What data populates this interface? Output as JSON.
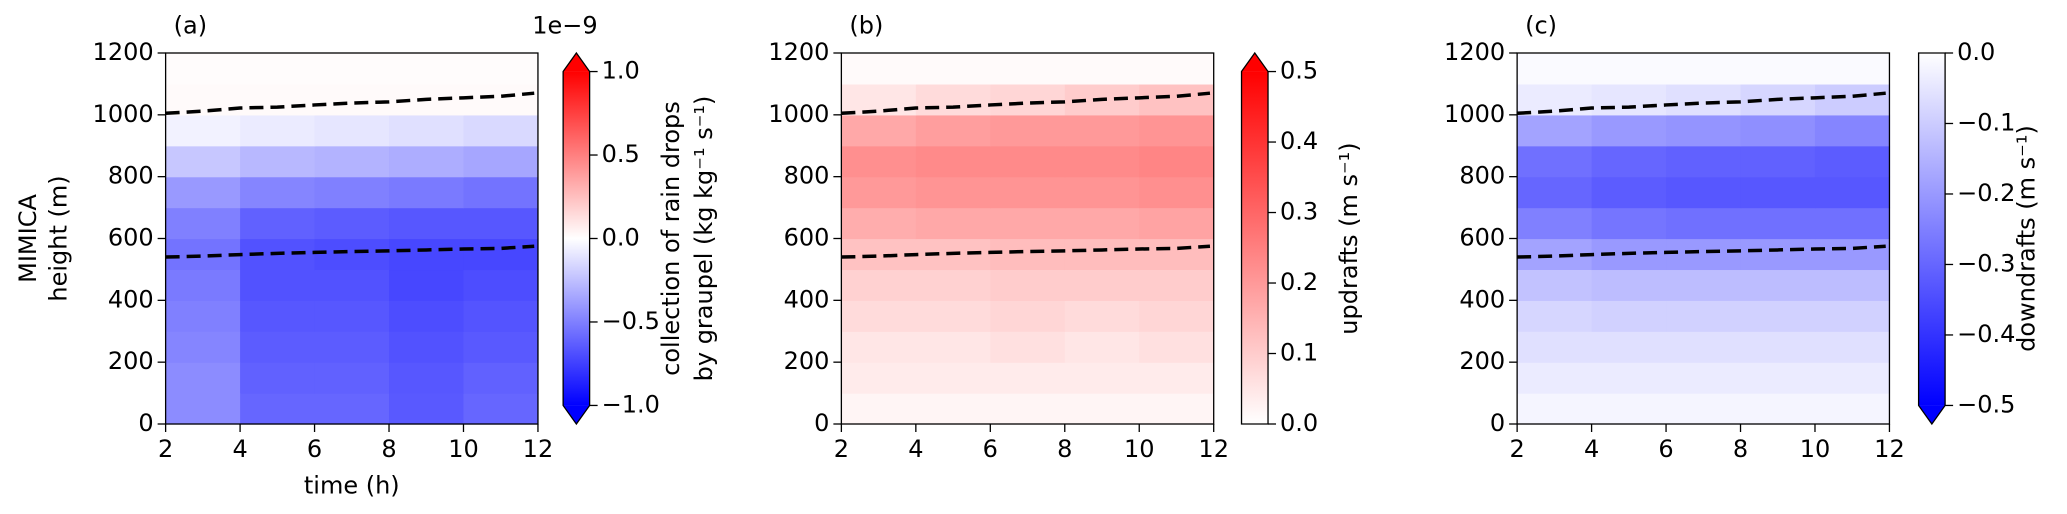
{
  "chart_data": [
    {
      "type": "heatmap",
      "panel_label": "(a)",
      "xlim": [
        2,
        12
      ],
      "xticks": [
        2,
        4,
        6,
        8,
        10,
        12
      ],
      "xlabel": "time (h)",
      "ylim": [
        0,
        1200
      ],
      "yticks": [
        0,
        200,
        400,
        600,
        800,
        1000,
        1200
      ],
      "ylabel": [
        "MIMICA",
        "height (m)"
      ],
      "colors": [
        "#0000ff",
        "#ffffff",
        "#ff0000"
      ],
      "clim": [
        -1,
        1
      ],
      "extend": "both",
      "colorbar_ticks": [
        {
          "value": -1,
          "label": "−1.0"
        },
        {
          "value": -0.5,
          "label": "−0.5"
        },
        {
          "value": 0,
          "label": "0.0"
        },
        {
          "value": 0.5,
          "label": "0.5"
        },
        {
          "value": 1,
          "label": "1.0"
        }
      ],
      "colorbar_offset": "1e−9",
      "colorbar_label": [
        "collection of rain drops",
        "by graupel (kg kg⁻¹ s⁻¹)"
      ],
      "x_edges": [
        2,
        4,
        6,
        8,
        10,
        12
      ],
      "y_edges": [
        0,
        100,
        200,
        300,
        400,
        500,
        600,
        700,
        800,
        900,
        1000,
        1100,
        1200
      ],
      "values": [
        [
          -0.45,
          -0.6,
          -0.6,
          -0.65,
          -0.6
        ],
        [
          -0.45,
          -0.62,
          -0.62,
          -0.66,
          -0.62
        ],
        [
          -0.48,
          -0.64,
          -0.64,
          -0.68,
          -0.65
        ],
        [
          -0.5,
          -0.66,
          -0.66,
          -0.7,
          -0.67
        ],
        [
          -0.52,
          -0.68,
          -0.68,
          -0.72,
          -0.7
        ],
        [
          -0.55,
          -0.68,
          -0.7,
          -0.72,
          -0.72
        ],
        [
          -0.5,
          -0.62,
          -0.64,
          -0.66,
          -0.66
        ],
        [
          -0.4,
          -0.48,
          -0.5,
          -0.52,
          -0.55
        ],
        [
          -0.22,
          -0.28,
          -0.3,
          -0.32,
          -0.35
        ],
        [
          -0.05,
          -0.08,
          -0.1,
          -0.12,
          -0.15
        ],
        [
          0.02,
          0.02,
          0.02,
          0.02,
          0.02
        ],
        [
          0.01,
          0.01,
          0.01,
          0.01,
          0.01
        ]
      ],
      "lines": [
        {
          "color": "#000000",
          "dashed": true,
          "x": [
            2,
            3,
            4,
            5,
            6,
            7,
            8,
            9,
            10,
            11,
            11.9
          ],
          "values": [
            1005,
            1012,
            1022,
            1025,
            1032,
            1038,
            1042,
            1050,
            1055,
            1060,
            1070
          ]
        },
        {
          "color": "#000000",
          "dashed": true,
          "x": [
            2,
            3,
            4,
            5,
            6,
            7,
            8,
            9,
            10,
            11,
            11.9
          ],
          "values": [
            540,
            543,
            548,
            552,
            555,
            558,
            560,
            563,
            566,
            568,
            575
          ]
        }
      ]
    },
    {
      "type": "heatmap",
      "panel_label": "(b)",
      "xlim": [
        2,
        12
      ],
      "xticks": [
        2,
        4,
        6,
        8,
        10,
        12
      ],
      "ylim": [
        0,
        1200
      ],
      "yticks": [
        0,
        200,
        400,
        600,
        800,
        1000,
        1200
      ],
      "colors": [
        "#ffffff",
        "#ff0000"
      ],
      "clim": [
        0,
        0.5
      ],
      "extend": "max",
      "colorbar_ticks": [
        {
          "value": 0,
          "label": "0.0"
        },
        {
          "value": 0.1,
          "label": "0.1"
        },
        {
          "value": 0.2,
          "label": "0.2"
        },
        {
          "value": 0.3,
          "label": "0.3"
        },
        {
          "value": 0.4,
          "label": "0.4"
        },
        {
          "value": 0.5,
          "label": "0.5"
        }
      ],
      "colorbar_label": [
        "updrafts (m s⁻¹)"
      ],
      "x_edges": [
        2,
        4,
        6,
        8,
        10,
        12
      ],
      "y_edges": [
        0,
        100,
        200,
        300,
        400,
        500,
        600,
        700,
        800,
        900,
        1000,
        1100,
        1200
      ],
      "values": [
        [
          0.02,
          0.02,
          0.02,
          0.02,
          0.02
        ],
        [
          0.04,
          0.04,
          0.04,
          0.04,
          0.04
        ],
        [
          0.05,
          0.05,
          0.06,
          0.05,
          0.06
        ],
        [
          0.07,
          0.07,
          0.08,
          0.07,
          0.08
        ],
        [
          0.09,
          0.09,
          0.1,
          0.1,
          0.1
        ],
        [
          0.12,
          0.12,
          0.13,
          0.13,
          0.13
        ],
        [
          0.16,
          0.17,
          0.17,
          0.17,
          0.18
        ],
        [
          0.2,
          0.21,
          0.21,
          0.21,
          0.22
        ],
        [
          0.22,
          0.23,
          0.23,
          0.23,
          0.24
        ],
        [
          0.17,
          0.19,
          0.2,
          0.2,
          0.21
        ],
        [
          0.05,
          0.07,
          0.08,
          0.1,
          0.12
        ],
        [
          0.01,
          0.01,
          0.01,
          0.01,
          0.01
        ]
      ],
      "lines": [
        {
          "color": "#000000",
          "dashed": true,
          "x": [
            2,
            3,
            4,
            5,
            6,
            7,
            8,
            9,
            10,
            11,
            11.9
          ],
          "values": [
            1005,
            1012,
            1022,
            1025,
            1032,
            1038,
            1042,
            1050,
            1055,
            1060,
            1070
          ]
        },
        {
          "color": "#000000",
          "dashed": true,
          "x": [
            2,
            3,
            4,
            5,
            6,
            7,
            8,
            9,
            10,
            11,
            11.9
          ],
          "values": [
            540,
            543,
            548,
            552,
            555,
            558,
            560,
            563,
            566,
            568,
            575
          ]
        }
      ]
    },
    {
      "type": "heatmap",
      "panel_label": "(c)",
      "xlim": [
        2,
        12
      ],
      "xticks": [
        2,
        4,
        6,
        8,
        10,
        12
      ],
      "ylim": [
        0,
        1200
      ],
      "yticks": [
        0,
        200,
        400,
        600,
        800,
        1000,
        1200
      ],
      "colors": [
        "#0000ff",
        "#ffffff"
      ],
      "clim": [
        -0.5,
        0
      ],
      "extend": "min",
      "colorbar_ticks": [
        {
          "value": -0.5,
          "label": "−0.5"
        },
        {
          "value": -0.4,
          "label": "−0.4"
        },
        {
          "value": -0.3,
          "label": "−0.3"
        },
        {
          "value": -0.2,
          "label": "−0.2"
        },
        {
          "value": -0.1,
          "label": "−0.1"
        },
        {
          "value": 0,
          "label": "0.0"
        }
      ],
      "colorbar_label": [
        "downdrafts (m s⁻¹)"
      ],
      "x_edges": [
        2,
        4,
        6,
        8,
        10,
        12
      ],
      "y_edges": [
        0,
        100,
        200,
        300,
        400,
        500,
        600,
        700,
        800,
        900,
        1000,
        1100,
        1200
      ],
      "values": [
        [
          -0.02,
          -0.02,
          -0.02,
          -0.02,
          -0.02
        ],
        [
          -0.04,
          -0.04,
          -0.04,
          -0.04,
          -0.04
        ],
        [
          -0.06,
          -0.06,
          -0.06,
          -0.06,
          -0.06
        ],
        [
          -0.08,
          -0.09,
          -0.09,
          -0.09,
          -0.09
        ],
        [
          -0.12,
          -0.13,
          -0.13,
          -0.13,
          -0.13
        ],
        [
          -0.18,
          -0.2,
          -0.2,
          -0.2,
          -0.2
        ],
        [
          -0.25,
          -0.27,
          -0.28,
          -0.28,
          -0.28
        ],
        [
          -0.3,
          -0.32,
          -0.33,
          -0.33,
          -0.33
        ],
        [
          -0.28,
          -0.3,
          -0.31,
          -0.31,
          -0.32
        ],
        [
          -0.18,
          -0.2,
          -0.21,
          -0.22,
          -0.24
        ],
        [
          -0.04,
          -0.05,
          -0.06,
          -0.08,
          -0.1
        ],
        [
          -0.01,
          -0.01,
          -0.01,
          -0.01,
          -0.01
        ]
      ],
      "lines": [
        {
          "color": "#000000",
          "dashed": true,
          "x": [
            2,
            3,
            4,
            5,
            6,
            7,
            8,
            9,
            10,
            11,
            11.9
          ],
          "values": [
            1005,
            1012,
            1022,
            1025,
            1032,
            1038,
            1042,
            1050,
            1055,
            1060,
            1070
          ]
        },
        {
          "color": "#000000",
          "dashed": true,
          "x": [
            2,
            3,
            4,
            5,
            6,
            7,
            8,
            9,
            10,
            11,
            11.9
          ],
          "values": [
            540,
            543,
            548,
            552,
            555,
            558,
            560,
            563,
            566,
            568,
            575
          ]
        }
      ]
    }
  ]
}
